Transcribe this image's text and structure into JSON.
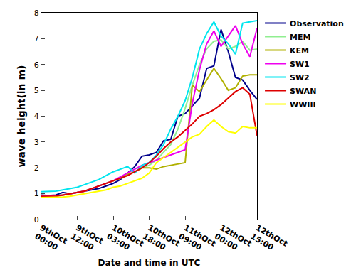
{
  "chart_data": {
    "type": "line",
    "x_label": "Date and time in UTC",
    "y_label": "wave height(in m)",
    "categories": [
      "9thOct 00:00",
      null,
      null,
      null,
      null,
      "9thOct 12:00",
      null,
      null,
      null,
      null,
      "10thOct 03:00",
      null,
      null,
      null,
      null,
      "10thOct 18:00",
      null,
      null,
      null,
      null,
      "11thOct 09:00",
      null,
      null,
      null,
      null,
      "12thOct 00:00",
      null,
      null,
      null,
      null,
      "12thOct 15:00"
    ],
    "ylim": [
      0,
      8
    ],
    "yticks": [
      0,
      1,
      2,
      3,
      4,
      5,
      6,
      7,
      8
    ],
    "grid": false,
    "legend": "right",
    "series": [
      {
        "name": "Observation",
        "color": "#00008b",
        "values": [
          0.95,
          0.93,
          0.95,
          1.05,
          1.0,
          1.05,
          1.1,
          1.15,
          1.2,
          1.3,
          1.4,
          1.55,
          1.8,
          2.05,
          2.45,
          2.5,
          2.6,
          3.05,
          3.1,
          4.0,
          4.1,
          4.4,
          4.7,
          5.85,
          5.95,
          7.35,
          6.5,
          5.5,
          5.4,
          5.0,
          4.65
        ]
      },
      {
        "name": "MEM",
        "color": "#90ee90",
        "values": [
          0.9,
          0.9,
          0.92,
          0.95,
          1.0,
          1.05,
          1.1,
          1.2,
          1.3,
          1.4,
          1.5,
          1.6,
          1.75,
          1.85,
          2.0,
          2.1,
          2.3,
          2.6,
          2.9,
          3.5,
          4.3,
          5.2,
          6.0,
          6.6,
          6.9,
          6.95,
          6.6,
          6.7,
          6.9,
          6.55,
          6.6
        ]
      },
      {
        "name": "KEM",
        "color": "#b0b000",
        "values": [
          0.9,
          0.9,
          0.92,
          0.95,
          1.0,
          1.05,
          1.1,
          1.2,
          1.3,
          1.4,
          1.5,
          1.6,
          1.75,
          1.85,
          2.0,
          2.0,
          1.95,
          2.05,
          2.1,
          2.15,
          2.2,
          5.2,
          4.95,
          5.4,
          5.85,
          5.45,
          5.0,
          5.1,
          5.55,
          5.6,
          5.6
        ]
      },
      {
        "name": "SW1",
        "color": "#ee00ee",
        "values": [
          0.9,
          0.9,
          0.92,
          0.95,
          1.0,
          1.05,
          1.1,
          1.2,
          1.3,
          1.4,
          1.5,
          1.65,
          1.8,
          1.95,
          2.1,
          2.2,
          2.3,
          2.4,
          2.5,
          2.6,
          2.7,
          4.5,
          5.8,
          6.8,
          7.3,
          6.7,
          7.1,
          7.5,
          6.8,
          6.3,
          7.4
        ]
      },
      {
        "name": "SW2",
        "color": "#00e5ee",
        "values": [
          1.08,
          1.08,
          1.1,
          1.15,
          1.2,
          1.25,
          1.35,
          1.45,
          1.55,
          1.7,
          1.85,
          1.95,
          2.05,
          1.8,
          2.1,
          2.2,
          2.5,
          2.9,
          3.5,
          4.0,
          4.6,
          5.5,
          6.6,
          7.2,
          7.65,
          7.1,
          6.8,
          6.4,
          7.6,
          7.65,
          7.7
        ]
      },
      {
        "name": "SWAN",
        "color": "#dd0000",
        "values": [
          0.9,
          0.9,
          0.9,
          0.95,
          1.0,
          1.05,
          1.1,
          1.2,
          1.3,
          1.4,
          1.5,
          1.6,
          1.7,
          1.85,
          2.0,
          2.2,
          2.45,
          2.75,
          3.0,
          3.2,
          3.45,
          3.7,
          4.0,
          4.1,
          4.25,
          4.45,
          4.7,
          4.95,
          5.1,
          4.85,
          3.25
        ]
      },
      {
        "name": "WWIII",
        "color": "#ffff00",
        "values": [
          0.85,
          0.85,
          0.85,
          0.87,
          0.9,
          0.95,
          1.0,
          1.05,
          1.1,
          1.15,
          1.25,
          1.3,
          1.4,
          1.5,
          1.6,
          1.8,
          2.2,
          2.4,
          2.6,
          2.8,
          3.0,
          3.2,
          3.3,
          3.6,
          3.85,
          3.6,
          3.4,
          3.35,
          3.6,
          3.55,
          3.55
        ]
      }
    ]
  }
}
